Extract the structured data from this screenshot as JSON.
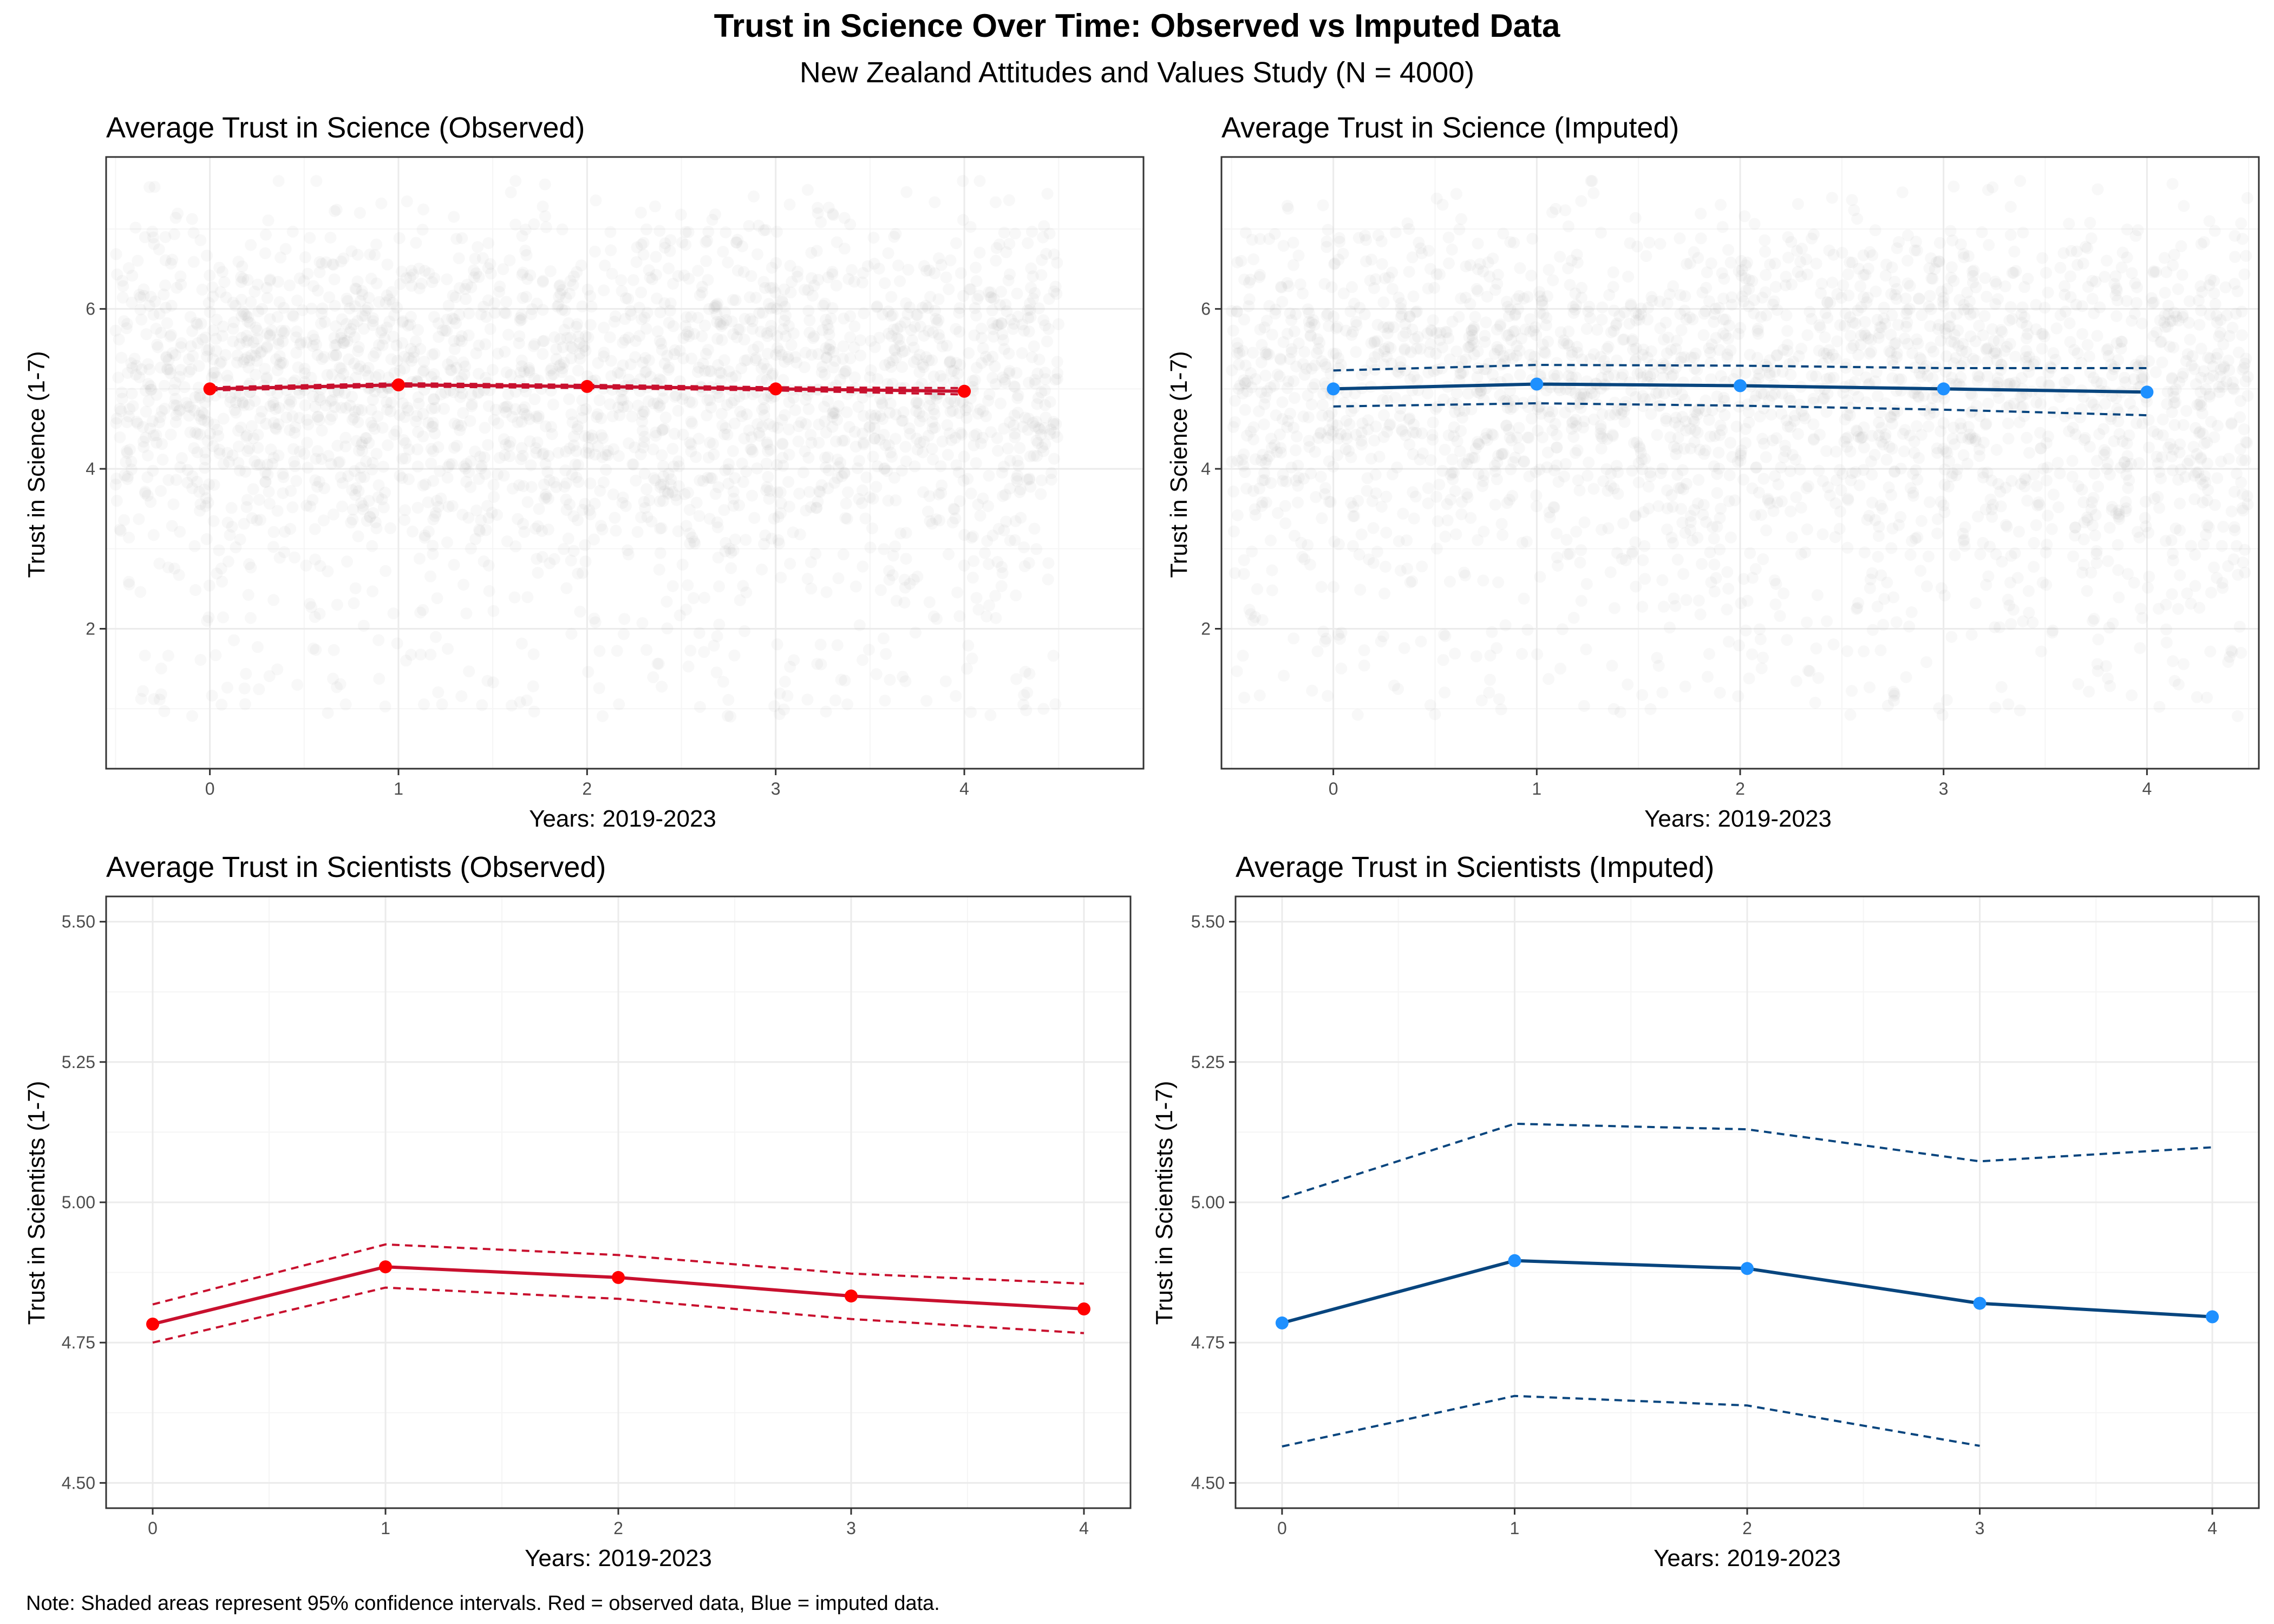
{
  "title": "Trust in Science Over Time: Observed vs Imputed Data",
  "subtitle": "New Zealand Attitudes and Values Study (N = 4000)",
  "caption": "Note: Shaded areas represent 95% confidence intervals. Red = observed data, Blue = imputed data.",
  "colors": {
    "observed_line": "#C8102E",
    "observed_point": "#FF0000",
    "imputed_line": "#08457E",
    "imputed_point": "#1E90FF",
    "jitter_point": "#9a9a9a",
    "panel_border": "#333333",
    "grid_major": "#ebebeb",
    "grid_minor": "#f5f5f5"
  },
  "chart_data": [
    {
      "id": "science-observed",
      "type": "line",
      "title": "Average Trust in Science (Observed)",
      "xlabel": "Years: 2019-2023",
      "ylabel": "Trust in Science (1-7)",
      "xlim": [
        -0.55,
        4.95
      ],
      "ylim": [
        0.25,
        7.9
      ],
      "x_ticks": [
        0,
        1,
        2,
        3,
        4
      ],
      "y_ticks": [
        2,
        4,
        6
      ],
      "grid": true,
      "background_jitter": true,
      "style": "observed",
      "x": [
        0,
        1,
        2,
        3,
        4
      ],
      "series": [
        {
          "name": "",
          "role": "mean",
          "values": [
            5.0,
            5.05,
            5.03,
            5.0,
            4.97
          ]
        },
        {
          "name": "",
          "role": "upper",
          "values": [
            5.02,
            5.07,
            5.05,
            5.02,
            5.01
          ]
        },
        {
          "name": "",
          "role": "lower",
          "values": [
            4.98,
            5.03,
            5.01,
            4.98,
            4.93
          ]
        }
      ]
    },
    {
      "id": "science-imputed",
      "type": "line",
      "title": "Average Trust in Science (Imputed)",
      "xlabel": "Years: 2019-2023",
      "ylabel": "Trust in Science (1-7)",
      "xlim": [
        -0.55,
        4.55
      ],
      "ylim": [
        0.25,
        7.9
      ],
      "x_ticks": [
        0,
        1,
        2,
        3,
        4
      ],
      "y_ticks": [
        2,
        4,
        6
      ],
      "grid": true,
      "background_jitter": true,
      "style": "imputed",
      "x": [
        0,
        1,
        2,
        3,
        4
      ],
      "series": [
        {
          "name": "",
          "role": "mean",
          "values": [
            5.0,
            5.06,
            5.04,
            5.0,
            4.96
          ]
        },
        {
          "name": "",
          "role": "upper",
          "values": [
            5.23,
            5.3,
            5.29,
            5.26,
            5.26
          ]
        },
        {
          "name": "",
          "role": "lower",
          "values": [
            4.78,
            4.82,
            4.79,
            4.74,
            4.67
          ]
        }
      ]
    },
    {
      "id": "scientists-observed",
      "type": "line",
      "title": "Average Trust in Scientists (Observed)",
      "xlabel": "Years: 2019-2023",
      "ylabel": "Trust in Scientists (1-7)",
      "xlim": [
        -0.2,
        4.2
      ],
      "ylim": [
        4.455,
        5.545
      ],
      "x_ticks": [
        0,
        1,
        2,
        3,
        4
      ],
      "y_ticks": [
        4.5,
        4.75,
        5.0,
        5.25,
        5.5
      ],
      "y_tick_labels": [
        "4.50",
        "4.75",
        "5.00",
        "5.25",
        "5.50"
      ],
      "grid": true,
      "background_jitter": false,
      "style": "observed",
      "x": [
        0,
        1,
        2,
        3,
        4
      ],
      "series": [
        {
          "name": "",
          "role": "mean",
          "values": [
            4.783,
            4.885,
            4.866,
            4.833,
            4.81
          ]
        },
        {
          "name": "",
          "role": "upper",
          "values": [
            4.818,
            4.925,
            4.906,
            4.873,
            4.855
          ]
        },
        {
          "name": "",
          "role": "lower",
          "values": [
            4.75,
            4.848,
            4.828,
            4.792,
            4.767
          ]
        }
      ]
    },
    {
      "id": "scientists-imputed",
      "type": "line",
      "title": "Average Trust in Scientists (Imputed)",
      "xlabel": "Years: 2019-2023",
      "ylabel": "Trust in Scientists (1-7)",
      "xlim": [
        -0.2,
        4.2
      ],
      "ylim": [
        4.455,
        5.545
      ],
      "x_ticks": [
        0,
        1,
        2,
        3,
        4
      ],
      "y_ticks": [
        4.5,
        4.75,
        5.0,
        5.25,
        5.5
      ],
      "y_tick_labels": [
        "4.50",
        "4.75",
        "5.00",
        "5.25",
        "5.50"
      ],
      "grid": true,
      "background_jitter": false,
      "style": "imputed",
      "x": [
        0,
        1,
        2,
        3,
        4
      ],
      "series": [
        {
          "name": "",
          "role": "mean",
          "values": [
            4.785,
            4.896,
            4.882,
            4.82,
            4.796
          ]
        },
        {
          "name": "",
          "role": "upper",
          "values": [
            5.007,
            5.14,
            5.13,
            5.073,
            5.098
          ]
        },
        {
          "name": "",
          "role": "lower",
          "values": [
            4.565,
            4.655,
            4.638,
            4.566,
            null
          ]
        }
      ]
    }
  ]
}
